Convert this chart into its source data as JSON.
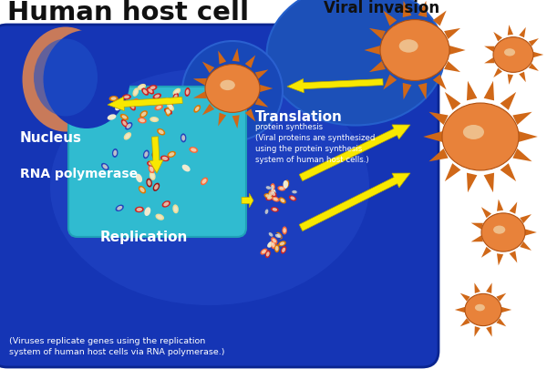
{
  "title": "Human host cell",
  "viral_invasion_label": "Viral invasion",
  "translation_label": "Translation",
  "translation_sub": "protein synthesis\n(Viral proteins are synthesized\nusing the protein synthesis\nsystem of human host cells.)",
  "rna_polymerase_label": "RNA polymerase",
  "nucleus_label": "Nucleus",
  "replication_label": "Replication",
  "replication_sub": "(Viruses replicate genes using the replication\nsystem of human host cells via RNA polymerase.)",
  "bg_color": "#ffffff",
  "cell_fill": "#1535b0",
  "cell_fill_center": "#2545c8",
  "nucleus_box_color": "#3bbfcf",
  "crescent_color": "#d8967a",
  "viral_circle_fill": "#1a4aaa",
  "viral_inv_circle_fill": "#2055bb",
  "orange_body": "#e8823a",
  "orange_spike": "#d06818",
  "inner_highlight": "#f0c898",
  "arrow_color": "#f8e800",
  "arrow_edge": "#b8a800",
  "text_white": "#ffffff",
  "text_black": "#111111",
  "particle_red": "#cc2222",
  "particle_orange": "#dd7700",
  "particle_white": "#f0ead0",
  "particle_blue": "#2244bb",
  "particle_darkred": "#991111"
}
